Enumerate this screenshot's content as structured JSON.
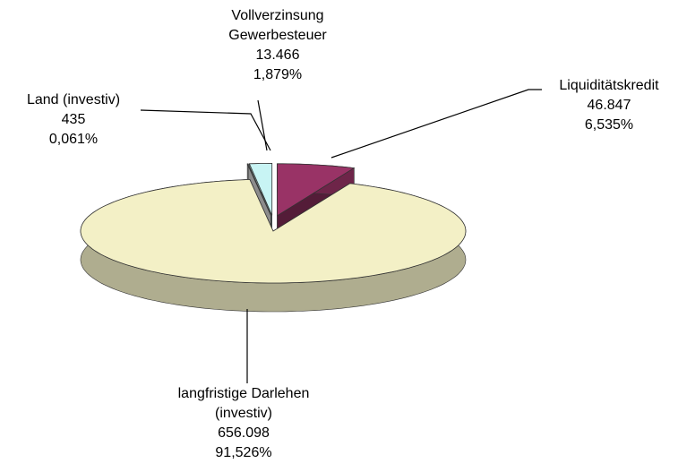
{
  "chart_data": {
    "type": "pie",
    "categories": [
      [
        "Liquiditätskredit"
      ],
      [
        "langfristige Darlehen",
        "(investiv)"
      ],
      [
        "Land (investiv)"
      ],
      [
        "Vollverzinsung",
        "Gewerbesteuer"
      ]
    ],
    "values": [
      46847,
      656098,
      435,
      13466
    ],
    "value_labels": [
      "46.847",
      "656.098",
      "435",
      "13.466"
    ],
    "percentages": [
      6.535,
      91.526,
      0.061,
      1.879
    ],
    "percentage_labels": [
      "6,535%",
      "91,526%",
      "0,061%",
      "1,879%"
    ],
    "colors": [
      "#993366",
      "#f3f0c6",
      "#ffffff",
      "#c8f4f4"
    ]
  }
}
